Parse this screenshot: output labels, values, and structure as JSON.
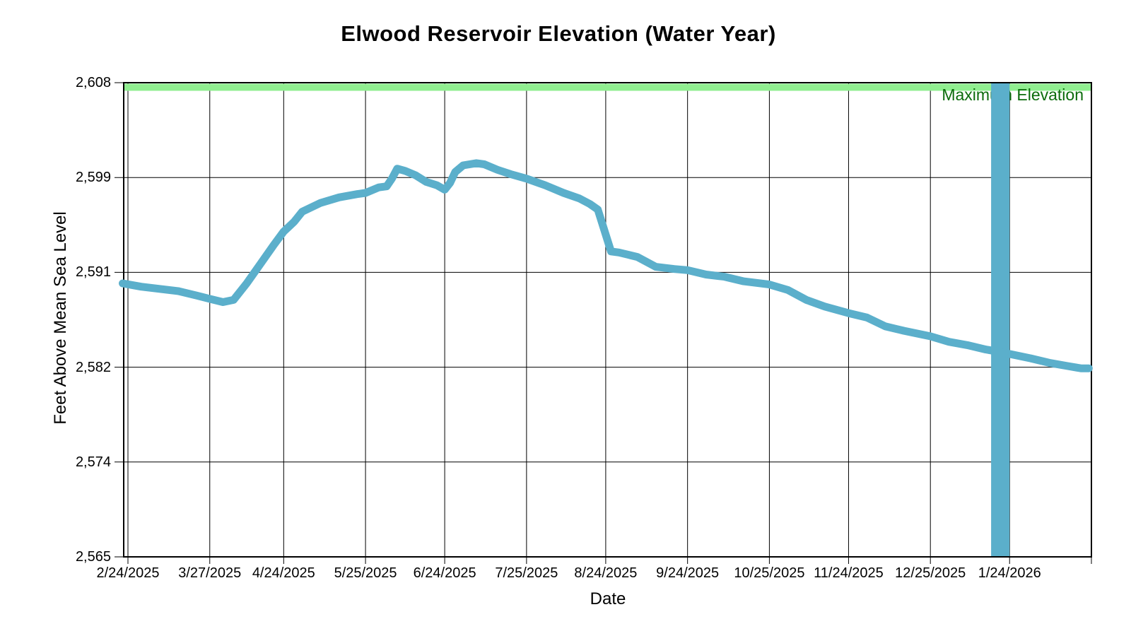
{
  "title": "Elwood Reservoir Elevation (Water Year)",
  "chart_data": {
    "type": "line",
    "title": "Elwood Reservoir Elevation (Water Year)",
    "x_axis": {
      "title": "Date",
      "start_date": "2/24/2025",
      "end_date": "2/24/2026",
      "tick_labels": [
        "2/24/2025",
        "3/27/2025",
        "4/24/2025",
        "5/25/2025",
        "6/24/2025",
        "7/25/2025",
        "8/24/2025",
        "9/24/2025",
        "10/25/2025",
        "11/24/2025",
        "12/25/2025",
        "1/24/2026"
      ]
    },
    "y_axis": {
      "title": "Feet Above Mean Sea Level",
      "min": 2565,
      "max": 2608,
      "ticks": [
        {
          "value": 2565.0,
          "label": "2,565"
        },
        {
          "value": 2573.6,
          "label": "2,574"
        },
        {
          "value": 2582.2,
          "label": "2,582"
        },
        {
          "value": 2590.8,
          "label": "2,591"
        },
        {
          "value": 2599.4,
          "label": "2,599"
        },
        {
          "value": 2608.0,
          "label": "2,608"
        }
      ]
    },
    "reference_line": {
      "label": "Maximum Elevation",
      "value": 2608,
      "line_color": "#90EE90",
      "label_color": "#0B6B0B"
    },
    "anomaly_bar": {
      "start_date": "1/17/2026",
      "end_date": "1/24/2026",
      "from_value": 2565,
      "to_value": 2608,
      "color": "#5BAFCB"
    },
    "series": [
      {
        "color": "#5BAFCB",
        "points": [
          [
            "2/22/2025",
            2589.8
          ],
          [
            "3/1/2025",
            2589.5
          ],
          [
            "3/8/2025",
            2589.3
          ],
          [
            "3/15/2025",
            2589.1
          ],
          [
            "3/22/2025",
            2588.7
          ],
          [
            "3/27/2025",
            2588.4
          ],
          [
            "4/1/2025",
            2588.1
          ],
          [
            "4/5/2025",
            2588.3
          ],
          [
            "4/10/2025",
            2589.8
          ],
          [
            "4/15/2025",
            2591.5
          ],
          [
            "4/20/2025",
            2593.2
          ],
          [
            "4/24/2025",
            2594.5
          ],
          [
            "4/28/2025",
            2595.4
          ],
          [
            "5/1/2025",
            2596.3
          ],
          [
            "5/8/2025",
            2597.1
          ],
          [
            "5/15/2025",
            2597.6
          ],
          [
            "5/22/2025",
            2597.9
          ],
          [
            "5/25/2025",
            2598.0
          ],
          [
            "5/30/2025",
            2598.5
          ],
          [
            "6/2/2025",
            2598.6
          ],
          [
            "6/4/2025",
            2599.3
          ],
          [
            "6/6/2025",
            2600.2
          ],
          [
            "6/9/2025",
            2600.0
          ],
          [
            "6/13/2025",
            2599.6
          ],
          [
            "6/17/2025",
            2599.0
          ],
          [
            "6/21/2025",
            2598.7
          ],
          [
            "6/24/2025",
            2598.3
          ],
          [
            "6/26/2025",
            2598.9
          ],
          [
            "6/28/2025",
            2599.9
          ],
          [
            "7/1/2025",
            2600.5
          ],
          [
            "7/6/2025",
            2600.7
          ],
          [
            "7/9/2025",
            2600.6
          ],
          [
            "7/14/2025",
            2600.1
          ],
          [
            "7/19/2025",
            2599.7
          ],
          [
            "7/25/2025",
            2599.3
          ],
          [
            "8/1/2025",
            2598.7
          ],
          [
            "8/8/2025",
            2598.0
          ],
          [
            "8/14/2025",
            2597.5
          ],
          [
            "8/18/2025",
            2597.0
          ],
          [
            "8/21/2025",
            2596.5
          ],
          [
            "8/26/2025",
            2592.7
          ],
          [
            "8/29/2025",
            2592.6
          ],
          [
            "9/5/2025",
            2592.2
          ],
          [
            "9/12/2025",
            2591.3
          ],
          [
            "9/19/2025",
            2591.1
          ],
          [
            "9/24/2025",
            2591.0
          ],
          [
            "10/1/2025",
            2590.6
          ],
          [
            "10/8/2025",
            2590.4
          ],
          [
            "10/15/2025",
            2590.0
          ],
          [
            "10/25/2025",
            2589.7
          ],
          [
            "11/1/2025",
            2589.2
          ],
          [
            "11/8/2025",
            2588.3
          ],
          [
            "11/15/2025",
            2587.7
          ],
          [
            "11/24/2025",
            2587.1
          ],
          [
            "12/1/2025",
            2586.7
          ],
          [
            "12/8/2025",
            2585.9
          ],
          [
            "12/15/2025",
            2585.5
          ],
          [
            "12/25/2025",
            2585.0
          ],
          [
            "1/1/2026",
            2584.5
          ],
          [
            "1/8/2026",
            2584.2
          ],
          [
            "1/15/2026",
            2583.8
          ],
          [
            "1/20/2026",
            2583.6
          ],
          [
            "1/24/2026",
            2583.4
          ],
          [
            "2/1/2026",
            2583.0
          ],
          [
            "2/8/2026",
            2582.6
          ],
          [
            "2/15/2026",
            2582.3
          ],
          [
            "2/20/2026",
            2582.1
          ],
          [
            "2/23/2026",
            2582.1
          ]
        ]
      }
    ],
    "grid": true,
    "grid_color": "#000000"
  }
}
